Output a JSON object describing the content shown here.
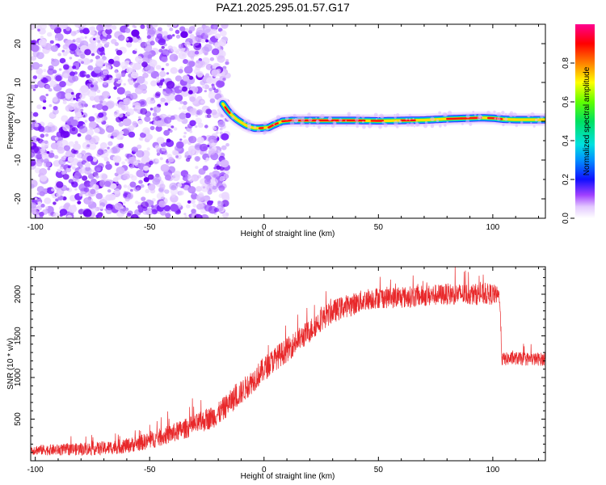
{
  "title": "PAZ1.2025.295.01.57.G17",
  "chart_data": [
    {
      "type": "heatmap",
      "name": "spectrogram",
      "xlabel": "Height of straight line (km)",
      "ylabel": "Frequency (Hz)",
      "xlim": [
        -102,
        123
      ],
      "ylim": [
        -25,
        25
      ],
      "xticks": [
        -100,
        -50,
        0,
        50,
        100
      ],
      "yticks": [
        -20,
        -10,
        0,
        10,
        20
      ],
      "noise_region_x": [
        -102,
        -18
      ],
      "ridge": {
        "x": [
          -18,
          -16,
          -14,
          -12,
          -10,
          -8,
          -6,
          -4,
          -2,
          0,
          2,
          4,
          6,
          8,
          12,
          20,
          30,
          40,
          50,
          60,
          70,
          80,
          90,
          95,
          100,
          105,
          110,
          115,
          120,
          123
        ],
        "y": [
          4.5,
          2.8,
          1.5,
          0.5,
          -0.3,
          -1.0,
          -1.5,
          -1.8,
          -1.8,
          -1.7,
          -1.6,
          -1.0,
          -0.5,
          0.0,
          0.2,
          0.2,
          0.2,
          0.2,
          0.1,
          0.2,
          0.3,
          0.6,
          0.8,
          0.9,
          0.8,
          0.5,
          0.4,
          0.4,
          0.4,
          0.4
        ]
      },
      "colorbar": {
        "label": "Normalized spectral amplitude",
        "ticks": [
          "0.0",
          "0.2",
          "0.4",
          "0.6",
          "0.8"
        ],
        "range": [
          0,
          1
        ]
      }
    },
    {
      "type": "line",
      "name": "snr",
      "xlabel": "Height of straight line (km)",
      "ylabel": "SNR (10 * v/v)",
      "xlim": [
        -102,
        123
      ],
      "ylim": [
        0,
        2330
      ],
      "xticks": [
        -100,
        -50,
        0,
        50,
        100
      ],
      "yticks": [
        500,
        1000,
        1500,
        2000
      ],
      "color": "#e8282a",
      "envelope": {
        "x": [
          -102,
          -90,
          -80,
          -70,
          -60,
          -50,
          -40,
          -30,
          -20,
          -15,
          -10,
          -5,
          0,
          5,
          10,
          15,
          20,
          25,
          30,
          35,
          40,
          45,
          50,
          60,
          70,
          80,
          90,
          100,
          103,
          104,
          110,
          115,
          120,
          123
        ],
        "y": [
          130,
          130,
          140,
          150,
          180,
          240,
          330,
          430,
          560,
          700,
          820,
          960,
          1100,
          1230,
          1330,
          1450,
          1560,
          1700,
          1790,
          1850,
          1890,
          1940,
          1960,
          1960,
          1980,
          2000,
          2000,
          2000,
          1980,
          1220,
          1230,
          1220,
          1220,
          1220
        ]
      },
      "noise_amplitude": {
        "x": [
          -102,
          -60,
          -20,
          0,
          30,
          50,
          100,
          104,
          123
        ],
        "y": [
          60,
          90,
          140,
          150,
          140,
          130,
          130,
          80,
          80
        ]
      }
    }
  ]
}
